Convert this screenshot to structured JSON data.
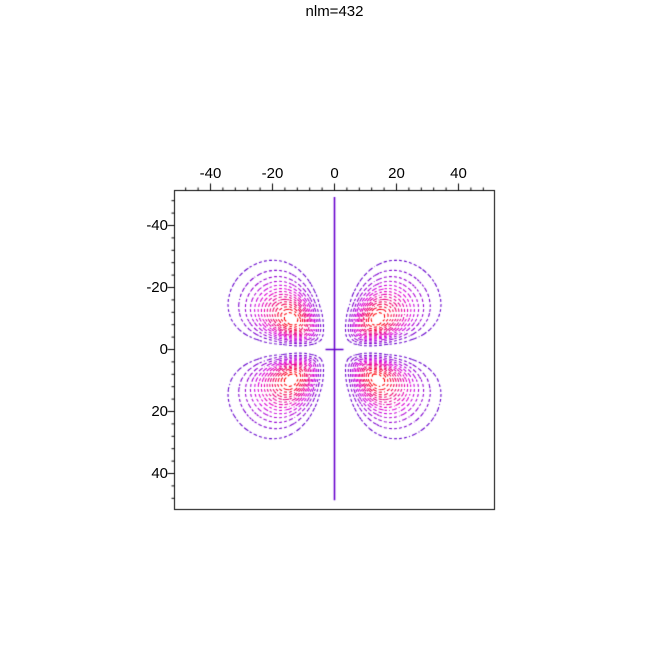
{
  "title": "nlm=432",
  "chart_data": {
    "type": "contour",
    "title": "nlm=432",
    "plot_kind": "orbital-probability-density-contour-plot",
    "x_axis": {
      "position": "top",
      "major_ticks": [
        -40,
        -20,
        0,
        20,
        40
      ],
      "tick_labels": [
        "-40",
        "-20",
        "0",
        "20",
        "40"
      ],
      "minor_tick_step": 4,
      "minor_tick_range": [
        -48,
        48
      ],
      "range": [
        -51.6,
        51.6
      ]
    },
    "y_axis": {
      "position": "left",
      "major_ticks": [
        -40,
        -20,
        0,
        20,
        40
      ],
      "tick_labels": [
        "-40",
        "-20",
        "0",
        "20",
        "40"
      ],
      "minor_tick_step": 4,
      "minor_tick_range": [
        -48,
        48
      ],
      "range": [
        -51.6,
        51.6
      ],
      "direction": "downward"
    },
    "field": {
      "formula": "f(x,z) = x^4 * z^2 * exp(-r/beta), r = sqrt(x^2+z^2), normalized to 1 at maxima",
      "beta": 2.82,
      "maxima": [
        [
          13.8,
          9.8
        ],
        [
          -13.8,
          9.8
        ],
        [
          13.8,
          -9.8
        ],
        [
          -13.8,
          -9.8
        ]
      ],
      "lobe_extent": {
        "abs_x": [
          3.9,
          29.5
        ],
        "abs_z": [
          1.2,
          25.5
        ]
      }
    },
    "levels": [
      0.0625,
      0.125,
      0.1875,
      0.25,
      0.3125,
      0.375,
      0.4375,
      0.5,
      0.5625,
      0.625,
      0.6875,
      0.75,
      0.8125,
      0.875,
      0.9375
    ],
    "contour_style": {
      "dash": [
        2.4,
        2.2
      ],
      "line_width": 1.1,
      "hue_start": 270,
      "hue_end": 360,
      "lightness_start": 40,
      "lightness_end": 50,
      "low_color": "#6600cc",
      "mid_color": "#cc0099",
      "high_color": "#ff0000"
    },
    "nodal_lines": {
      "color": "#6600cc",
      "line_width": 1.6,
      "vertical": {
        "x": 0,
        "z_from": -49.2,
        "z_to": 48.6
      },
      "cross_tick": {
        "z": 0,
        "x_from": -2.9,
        "x_to": 2.9
      }
    },
    "axis_color": "#000000",
    "box": true,
    "grid": false,
    "legend": false
  }
}
